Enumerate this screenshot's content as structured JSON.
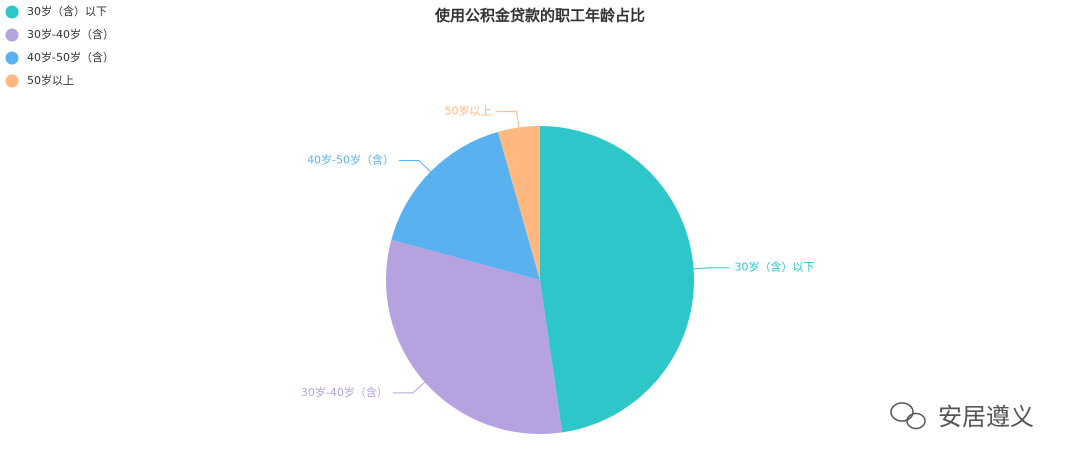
{
  "chart_data": {
    "type": "pie",
    "title": "使用公积金贷款的职工年龄占比",
    "categories": [
      "30岁（含）以下",
      "30岁-40岁（含）",
      "40岁-50岁（含）",
      "50岁以上"
    ],
    "values": [
      47.7,
      31.5,
      16.4,
      4.4
    ],
    "colors": [
      "#2ec7c9",
      "#b6a2de",
      "#5ab1ef",
      "#ffb980"
    ],
    "legend": "top-left"
  },
  "watermark": "安居遵义"
}
